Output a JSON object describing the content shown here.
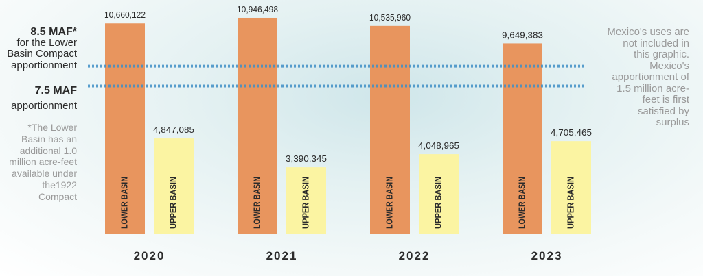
{
  "chart_data": {
    "type": "bar",
    "categories": [
      "2020",
      "2021",
      "2022",
      "2023"
    ],
    "series": [
      {
        "name": "LOWER BASIN",
        "values": [
          10660122,
          10946498,
          10535960,
          9649383
        ],
        "color": "#e8955e"
      },
      {
        "name": "UPPER BASIN",
        "values": [
          4847085,
          3390345,
          4048965,
          4705465
        ],
        "color": "#fbf4a2"
      }
    ],
    "data_labels": {
      "2020": [
        "10,660,122",
        "4,847,085"
      ],
      "2021": [
        "10,946,498",
        "3,390,345"
      ],
      "2022": [
        "10,535,960",
        "4,048,965"
      ],
      "2023": [
        "9,649,383",
        "4,705,465"
      ]
    },
    "reference_lines": [
      {
        "value": 8500000,
        "label": "8.5 MAF*",
        "sublabel": "for the Lower Basin Compact apportionment"
      },
      {
        "value": 7500000,
        "label": "7.5 MAF",
        "sublabel": "apportionment"
      }
    ],
    "reference_line_color": "#3f8fc6",
    "ylim": [
      0,
      11500000
    ],
    "grid": false,
    "legend": "none"
  },
  "labels": {
    "line1_bold": "8.5 MAF*",
    "line1_sub_a": "for the Lower",
    "line1_sub_b": "Basin Compact",
    "line1_sub_c": "apportionment",
    "line2_bold": "7.5 MAF",
    "line2_sub": "apportionment",
    "footnote": "*The Lower Basin has an additional 1.0 million acre-feet available under the1922 Compact",
    "right_note": "Mexico's uses are not included in this graphic. Mexico's apportionment of 1.5 million acre-feet is first satisfied by surplus"
  }
}
